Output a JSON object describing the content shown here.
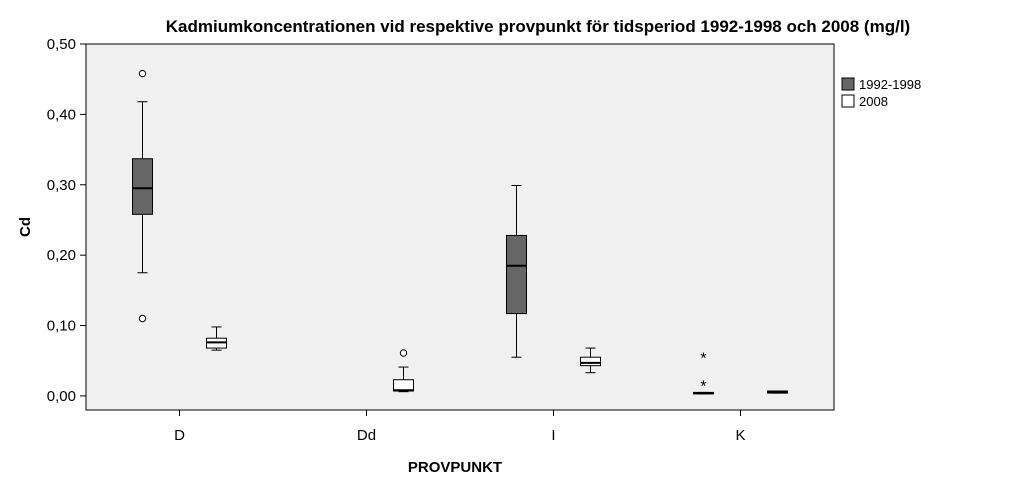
{
  "chart_data": {
    "type": "boxplot",
    "title": "Kadmiumkoncentrationen vid respektive provpunkt för tidsperiod 1992-1998 och 2008 (mg/l)",
    "xlabel": "PROVPUNKT",
    "ylabel": "Cd",
    "ylim": [
      -0.02,
      0.5
    ],
    "yticks": [
      "0,00",
      "0,10",
      "0,20",
      "0,30",
      "0,40",
      "0,50"
    ],
    "ytick_values": [
      0,
      0.1,
      0.2,
      0.3,
      0.4,
      0.5
    ],
    "grid": false,
    "legend_position": "right",
    "categories": [
      "D",
      "Dd",
      "I",
      "K"
    ],
    "series": [
      {
        "name": "1992-1998",
        "color": "#666666",
        "boxes": [
          {
            "category": "D",
            "min": 0.175,
            "q1": 0.258,
            "median": 0.295,
            "q3": 0.337,
            "max": 0.418,
            "outliers": [
              0.458,
              0.11
            ],
            "extremes": []
          },
          {
            "category": "Dd",
            "empty": true
          },
          {
            "category": "I",
            "min": 0.055,
            "q1": 0.117,
            "median": 0.185,
            "q3": 0.228,
            "max": 0.299,
            "outliers": [],
            "extremes": []
          },
          {
            "category": "K",
            "min": 0.003,
            "q1": 0.003,
            "median": 0.004,
            "q3": 0.005,
            "max": 0.005,
            "outliers": [],
            "extremes": [
              0.056,
              0.016
            ]
          }
        ]
      },
      {
        "name": "2008",
        "color": "#ffffff",
        "boxes": [
          {
            "category": "D",
            "min": 0.065,
            "q1": 0.068,
            "median": 0.076,
            "q3": 0.082,
            "max": 0.098,
            "outliers": [],
            "extremes": []
          },
          {
            "category": "Dd",
            "min": 0.006,
            "q1": 0.007,
            "median": 0.008,
            "q3": 0.023,
            "max": 0.041,
            "outliers": [
              0.061
            ],
            "extremes": []
          },
          {
            "category": "I",
            "min": 0.033,
            "q1": 0.043,
            "median": 0.047,
            "q3": 0.055,
            "max": 0.068,
            "outliers": [],
            "extremes": []
          },
          {
            "category": "K",
            "min": 0.004,
            "q1": 0.004,
            "median": 0.005,
            "q3": 0.007,
            "max": 0.007,
            "outliers": [],
            "extremes": []
          }
        ]
      }
    ]
  }
}
